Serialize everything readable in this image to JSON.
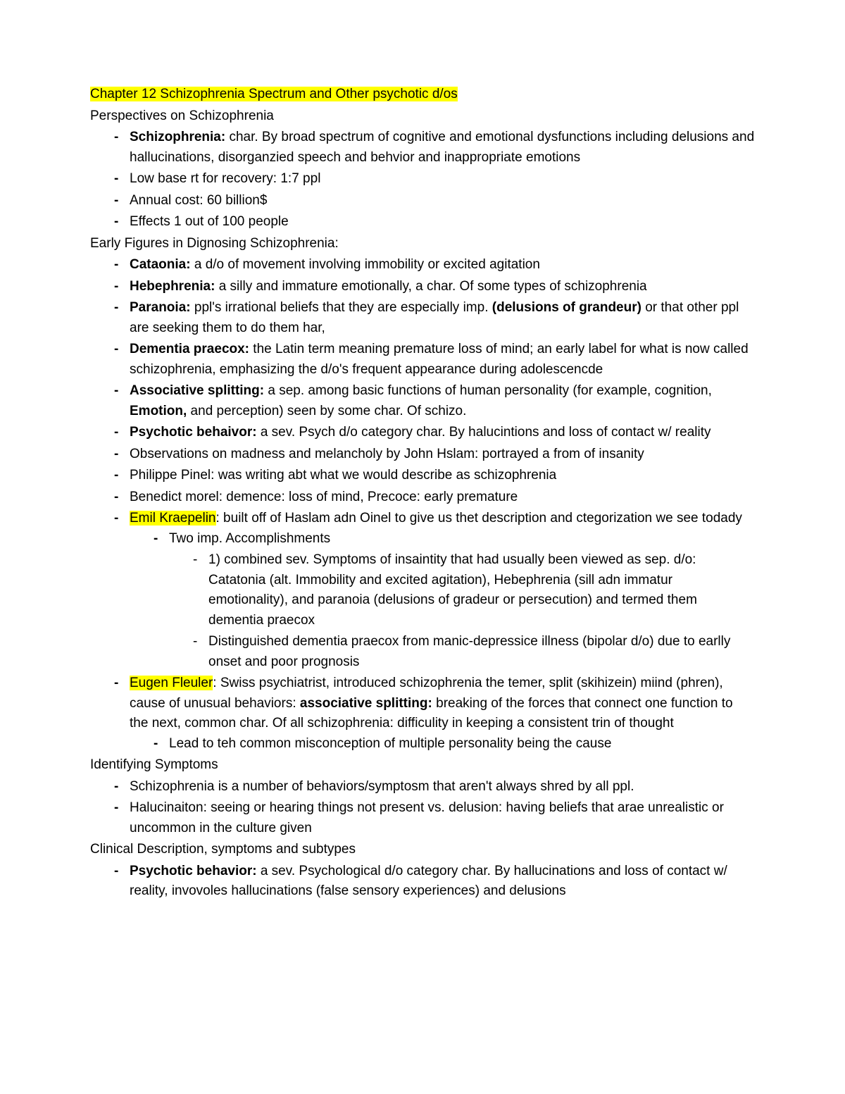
{
  "title": "Chapter 12 Schizophrenia Spectrum and Other psychotic d/os",
  "h1": "Perspectives on Schizophrenia",
  "s1": {
    "i1a": "Schizophrenia:",
    "i1b": " char. By  broad spectrum of cognitive and emotional dysfunctions including delusions and hallucinations, disorganzied speech and behvior and inappropriate emotions",
    "i2": "Low base rt for recovery: 1:7 ppl",
    "i3": "Annual cost: 60 billion$",
    "i4": "Effects 1 out of 100 people"
  },
  "h2": "Early Figures in Dignosing Schizophrenia:",
  "s2": {
    "i1a": "Cataonia:",
    "i1b": " a d/o of movement involving immobility or excited agitation",
    "i2a": "Hebephrenia:",
    "i2b": " a silly and immature emotionally, a char. Of some types of schizophrenia",
    "i3a": "Paranoia:",
    "i3b": " ppl's irrational beliefs that they are especially imp. ",
    "i3c": "(delusions of grandeur)",
    "i3d": " or that other ppl are seeking them to do them har,",
    "i4a": "Dementia praecox:",
    "i4b": " the Latin term meaning premature loss of mind; an early label for what is now called schizophrenia, emphasizing the d/o's frequent appearance during adolescencde",
    "i5a": "Associative splitting:",
    "i5b": " a sep. among basic functions of human personality (for example, cognition, ",
    "i5c": "Emotion,",
    "i5d": " and perception) seen by some char. Of schizo.",
    "i6a": "Psychotic behaivor:",
    "i6b": " a sev. Psych d/o category char. By halucintions and loss of contact w/ reality",
    "i7": "Observations on madness and melancholy by John Hslam: portrayed a from of insanity",
    "i8": "Philippe Pinel: was writing abt what we would describe as schizophrenia",
    "i9": "Benedict morel: demence: loss of mind, Precoce: early premature",
    "i10a": "Emil Kraepelin",
    "i10b": ": built off of Haslam adn Oinel to give us thet description and ctegorization we see todady",
    "i10s1": "Two imp. Accomplishments",
    "i10s1a": "1) combined sev. Symptoms of insaintity that had usually been viewed as sep. d/o: Catatonia (alt. Immobility and excited agitation), Hebephrenia (sill adn immatur emotionality), and paranoia (delusions of gradeur or persecution) and termed them dementia praecox",
    "i10s1b": "Distinguished dementia praecox from manic-depressice illness (bipolar d/o) due to earlly onset and poor prognosis",
    "i11a": "Eugen Fleuler",
    "i11b": ": Swiss psychiatrist, introduced schizophrenia the temer, split (skihizein) miind (phren), cause of unusual behaviors: ",
    "i11c": "associative splitting:",
    "i11d": " breaking of the forces that connect one function to the next, common char. Of all schizophrenia: difficulity in keeping a consistent trin of thought",
    "i11s1": "Lead to teh common misconception of multiple personality being the cause"
  },
  "h3": "Identifying Symptoms",
  "s3": {
    "i1": "Schizophrenia is a  number of behaviors/symptosm that aren't always shred by all ppl.",
    "i2": "Halucinaiton: seeing or hearing things not present vs. delusion: having beliefs that arae unrealistic or uncommon in the culture given"
  },
  "h4": "Clinical Description, symptoms and subtypes",
  "s4": {
    "i1a": "Psychotic behavior:",
    "i1b": " a sev. Psychological d/o category char. By hallucinations and loss of contact w/ reality, invovoles hallucinations (false sensory experiences) and delusions"
  },
  "style": {
    "highlight_color": "#ffff00",
    "background_color": "#ffffff",
    "text_color": "#000000",
    "font_size_pt": 14,
    "font_family": "Arial"
  }
}
